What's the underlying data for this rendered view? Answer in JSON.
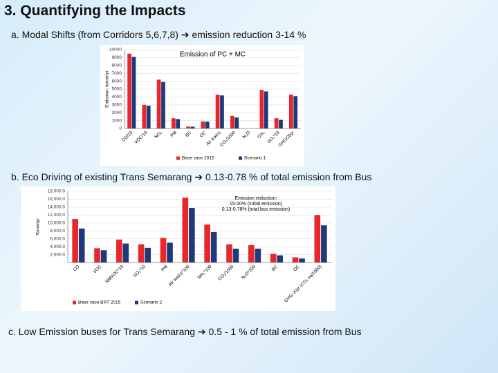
{
  "slide": {
    "title": "3. Quantifying the Impacts",
    "item_a": "a. Modal Shifts (from Corridors 5,6,7,8) ➔ emission reduction 3-14 %",
    "item_b": "b. Eco Driving of existing Trans Semarang ➔ 0.13-0.78 % of total emission from Bus",
    "item_c": "c. Low Emission buses for Trans Semarang ➔ 0.5 - 1 % of total emission from Bus"
  },
  "chart_data": [
    {
      "type": "bar",
      "title": "Emission of PC + MC",
      "y_label": "Emission, tonne/yr",
      "categories": [
        "CO/10",
        "VOC/10",
        "NOₓ",
        "PM",
        "BC",
        "OC",
        "Air toxics",
        "CO₂/1000",
        "N₂O",
        "CH₄",
        "SO₂*10",
        "GHG/20yr"
      ],
      "series": [
        {
          "name": "Base case 2015",
          "color": "#e8262c",
          "values": [
            9500,
            3000,
            6200,
            1300,
            250,
            900,
            4300,
            1600,
            0,
            4900,
            1300,
            4300
          ]
        },
        {
          "name": "Scenario 1",
          "color": "#1f3a7a",
          "values": [
            9100,
            2900,
            5900,
            1200,
            230,
            870,
            4200,
            1400,
            0,
            4700,
            1100,
            4100
          ]
        }
      ],
      "ylim": [
        0,
        10000
      ],
      "yticks": [
        0,
        1000,
        2000,
        3000,
        4000,
        5000,
        6000,
        7000,
        8000,
        9000,
        10000
      ],
      "grid": true,
      "legend": "bottom"
    },
    {
      "type": "bar",
      "y_label": "Tonne/yr",
      "annotation": [
        "Emission reduction:",
        "15-20% (initial emission)",
        "0.13-0.78% (total bus emission)"
      ],
      "categories": [
        "CO",
        "VOC",
        "NMVOC*10",
        "SO₂*10",
        "PM",
        "Air toxics*100",
        "NH₃*100",
        "CO₂/1000",
        "N₂O*100",
        "BC",
        "OC",
        "GHG-20yr (CO₂ eq/1000)"
      ],
      "series": [
        {
          "name": "Base case BRT 2015",
          "color": "#e8262c",
          "values": [
            11000,
            3600,
            5800,
            4600,
            6200,
            16400,
            9600,
            4600,
            4400,
            2200,
            1300,
            12000
          ]
        },
        {
          "name": "Scenario 2",
          "color": "#1f3a7a",
          "values": [
            8600,
            3100,
            4800,
            3700,
            5000,
            13800,
            7700,
            3500,
            3500,
            1800,
            1000,
            9400
          ]
        }
      ],
      "ylim": [
        0,
        18000
      ],
      "yticks": [
        {
          "value": 0,
          "label": "-"
        },
        {
          "value": 2000,
          "label": "2,000.0"
        },
        {
          "value": 4000,
          "label": "4,000.0"
        },
        {
          "value": 6000,
          "label": "6,000.0"
        },
        {
          "value": 8000,
          "label": "8,000.0"
        },
        {
          "value": 10000,
          "label": "10,000.0"
        },
        {
          "value": 12000,
          "label": "12,000.0"
        },
        {
          "value": 14000,
          "label": "14,000.0"
        },
        {
          "value": 16000,
          "label": "16,000.0"
        },
        {
          "value": 18000,
          "label": "18,000.0"
        }
      ],
      "grid": true,
      "legend": "bottom"
    }
  ]
}
